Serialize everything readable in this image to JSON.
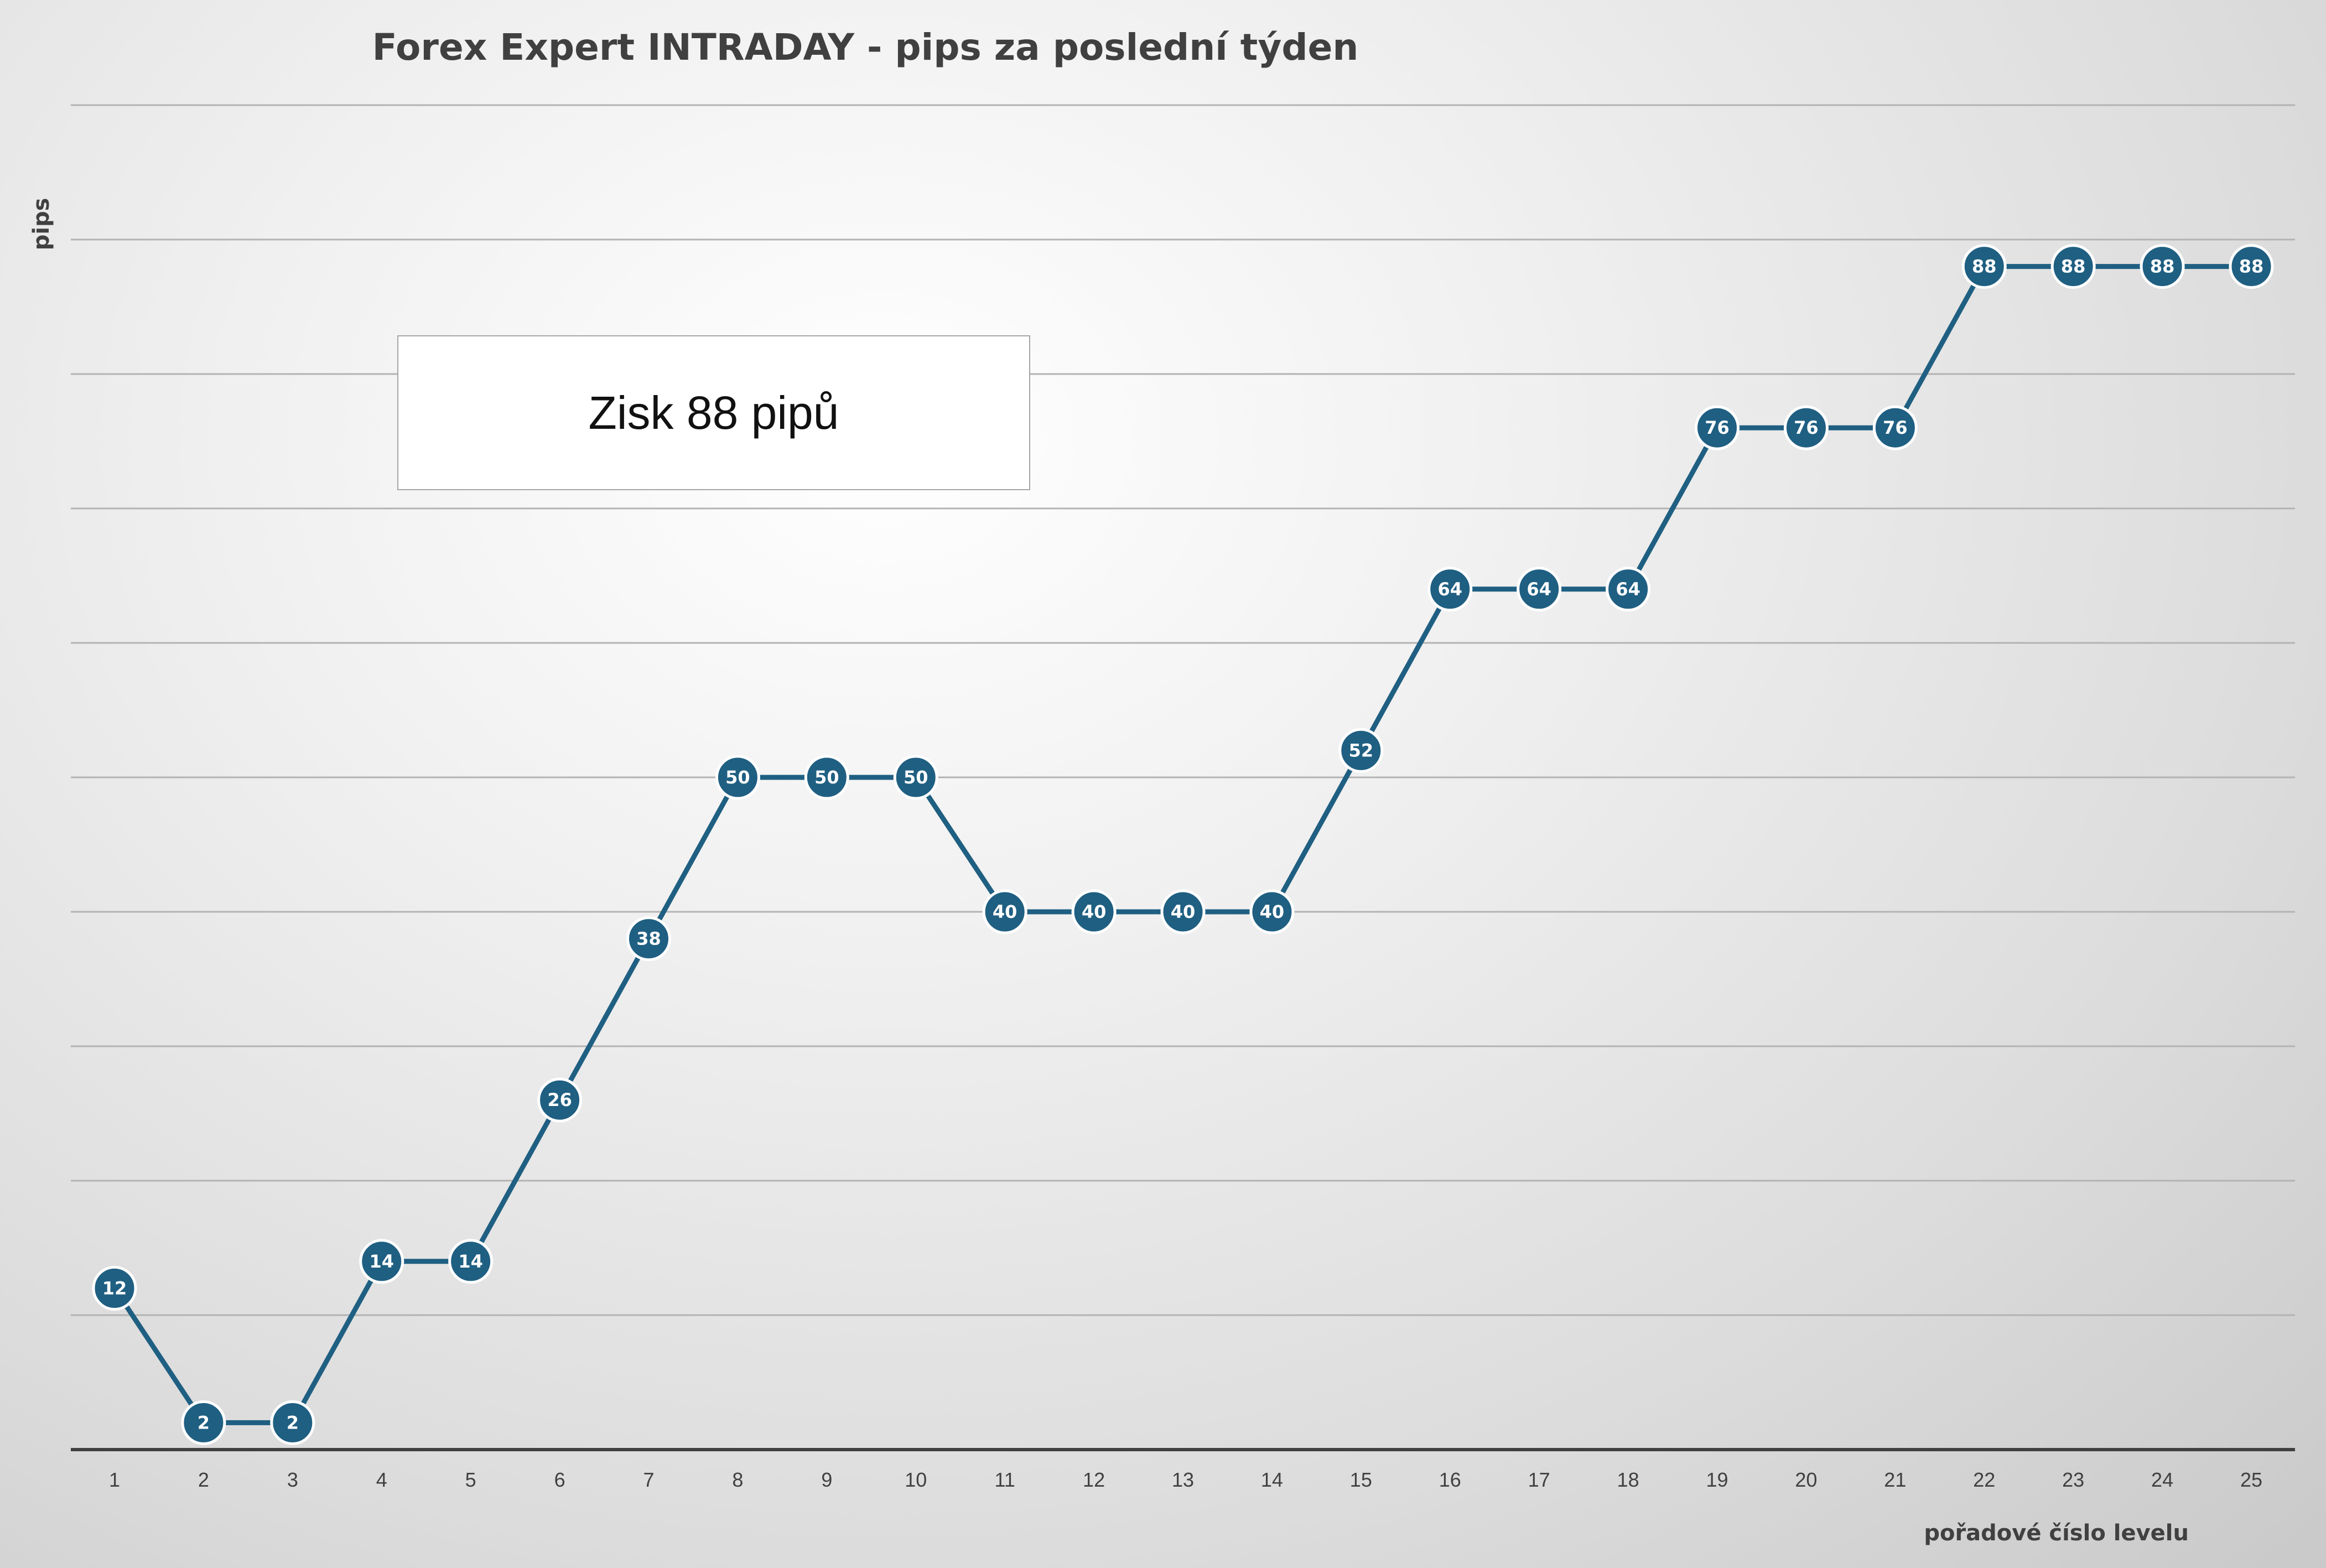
{
  "chart_data": {
    "type": "line",
    "title": "Forex Expert INTRADAY - pips za poslední týden",
    "xlabel": "pořadové číslo levelu",
    "ylabel": "pips",
    "categories": [
      "1",
      "2",
      "3",
      "4",
      "5",
      "6",
      "7",
      "8",
      "9",
      "10",
      "11",
      "12",
      "13",
      "14",
      "15",
      "16",
      "17",
      "18",
      "19",
      "20",
      "21",
      "22",
      "23",
      "24",
      "25"
    ],
    "series": [
      {
        "values": [
          12,
          2,
          2,
          14,
          14,
          26,
          38,
          50,
          50,
          50,
          40,
          40,
          40,
          40,
          52,
          64,
          64,
          64,
          76,
          76,
          76,
          88,
          88,
          88,
          88
        ],
        "color": "#1f5f82"
      }
    ],
    "ylim": [
      0,
      100
    ],
    "ygrid_step": 10,
    "grid": true,
    "y_tick_labels": false,
    "data_labels": true,
    "marker": "circle",
    "annotation": "Zisk 88 pipů"
  }
}
